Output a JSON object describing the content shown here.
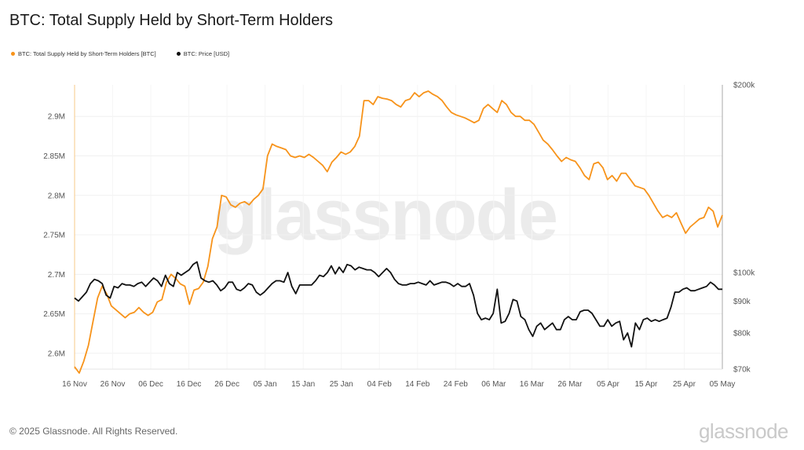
{
  "header": {
    "title": "BTC: Total Supply Held by Short-Term Holders"
  },
  "footer": {
    "copyright": "© 2025 Glassnode. All Rights Reserved.",
    "brand": "glassnode"
  },
  "watermark": "glassnode",
  "chart_data": {
    "type": "line",
    "title": "BTC: Total Supply Held by Short-Term Holders",
    "x_ticks": [
      "16 Nov",
      "26 Nov",
      "06 Dec",
      "16 Dec",
      "26 Dec",
      "05 Jan",
      "15 Jan",
      "25 Jan",
      "04 Feb",
      "14 Feb",
      "24 Feb",
      "06 Mar",
      "16 Mar",
      "26 Mar",
      "05 Apr",
      "15 Apr",
      "25 Apr",
      "05 May"
    ],
    "left_axis": {
      "ticks": [
        "2.6M",
        "2.65M",
        "2.7M",
        "2.75M",
        "2.8M",
        "2.85M",
        "2.9M"
      ],
      "tick_values": [
        2.6,
        2.65,
        2.7,
        2.75,
        2.8,
        2.85,
        2.9
      ],
      "range": [
        2.58,
        2.94
      ],
      "unit": "M BTC"
    },
    "right_axis": {
      "ticks": [
        "$70k",
        "$80k",
        "$90k",
        "$100k",
        "$200k"
      ],
      "tick_values": [
        70,
        80,
        90,
        100,
        200
      ],
      "scale": "log",
      "range": [
        70,
        200
      ],
      "unit": "k USD"
    },
    "series": [
      {
        "name": "BTC: Total Supply Held by Short-Term Holders [BTC]",
        "color": "#f7931a",
        "axis": "left",
        "values": [
          2.583,
          2.575,
          2.59,
          2.61,
          2.64,
          2.67,
          2.685,
          2.675,
          2.66,
          2.655,
          2.65,
          2.645,
          2.65,
          2.652,
          2.658,
          2.652,
          2.648,
          2.652,
          2.665,
          2.668,
          2.69,
          2.7,
          2.695,
          2.688,
          2.685,
          2.662,
          2.68,
          2.682,
          2.69,
          2.71,
          2.745,
          2.76,
          2.8,
          2.798,
          2.788,
          2.785,
          2.79,
          2.792,
          2.788,
          2.795,
          2.8,
          2.808,
          2.85,
          2.865,
          2.862,
          2.86,
          2.858,
          2.85,
          2.848,
          2.85,
          2.848,
          2.852,
          2.848,
          2.843,
          2.838,
          2.83,
          2.842,
          2.848,
          2.855,
          2.852,
          2.855,
          2.862,
          2.875,
          2.92,
          2.92,
          2.915,
          2.925,
          2.923,
          2.922,
          2.92,
          2.915,
          2.912,
          2.92,
          2.922,
          2.93,
          2.925,
          2.93,
          2.932,
          2.928,
          2.925,
          2.92,
          2.912,
          2.905,
          2.902,
          2.9,
          2.898,
          2.895,
          2.892,
          2.895,
          2.91,
          2.915,
          2.91,
          2.905,
          2.92,
          2.915,
          2.905,
          2.9,
          2.9,
          2.895,
          2.895,
          2.89,
          2.88,
          2.87,
          2.865,
          2.858,
          2.85,
          2.843,
          2.848,
          2.845,
          2.843,
          2.835,
          2.825,
          2.82,
          2.84,
          2.842,
          2.835,
          2.82,
          2.825,
          2.818,
          2.828,
          2.828,
          2.82,
          2.812,
          2.81,
          2.808,
          2.8,
          2.79,
          2.78,
          2.772,
          2.775,
          2.772,
          2.778,
          2.765,
          2.752,
          2.76,
          2.765,
          2.77,
          2.772,
          2.785,
          2.78,
          2.76,
          2.775
        ]
      },
      {
        "name": "BTC: Price [USD]",
        "color": "#111111",
        "axis": "right",
        "values": [
          91,
          90,
          91.5,
          93,
          96,
          97.5,
          97,
          96,
          92,
          91,
          95,
          94.5,
          96,
          95.5,
          95.5,
          95,
          96,
          96.5,
          95,
          96.5,
          98,
          97,
          95,
          99,
          96,
          95,
          100,
          99,
          100,
          101,
          103,
          104,
          98,
          97,
          96.5,
          97,
          95.5,
          93.5,
          94.5,
          96.5,
          96.5,
          94,
          93.5,
          94.5,
          96,
          95.5,
          93,
          92,
          93,
          94.5,
          96,
          97,
          97,
          96.5,
          100,
          95,
          92.5,
          95.5,
          95.5,
          95.5,
          95.5,
          97,
          99,
          98.5,
          100,
          102.5,
          99.5,
          102,
          100,
          103,
          102.5,
          101,
          102,
          101.5,
          101,
          101,
          100,
          98.5,
          100,
          101.5,
          100,
          97.5,
          96,
          95.5,
          95.5,
          96,
          96,
          96.5,
          96,
          95.5,
          97,
          95.5,
          96,
          96.5,
          96.5,
          96,
          95,
          96,
          95,
          95,
          96,
          92,
          86,
          84,
          84.5,
          84,
          86,
          94,
          83,
          83.5,
          86,
          90.5,
          90,
          85,
          84,
          81,
          79,
          82,
          83,
          81,
          82,
          83,
          81,
          81,
          84,
          85,
          84,
          84,
          86.5,
          87,
          87,
          86,
          84,
          82,
          82,
          84,
          82,
          83,
          83.5,
          78,
          80,
          76,
          83,
          81,
          84,
          84.5,
          83.5,
          84,
          83.5,
          84,
          84.5,
          88,
          93,
          93,
          94,
          94.5,
          93.5,
          93.5,
          94,
          94.5,
          95,
          96.5,
          95.5,
          94,
          94
        ]
      }
    ],
    "grid": true,
    "legend_position": "top-left"
  }
}
